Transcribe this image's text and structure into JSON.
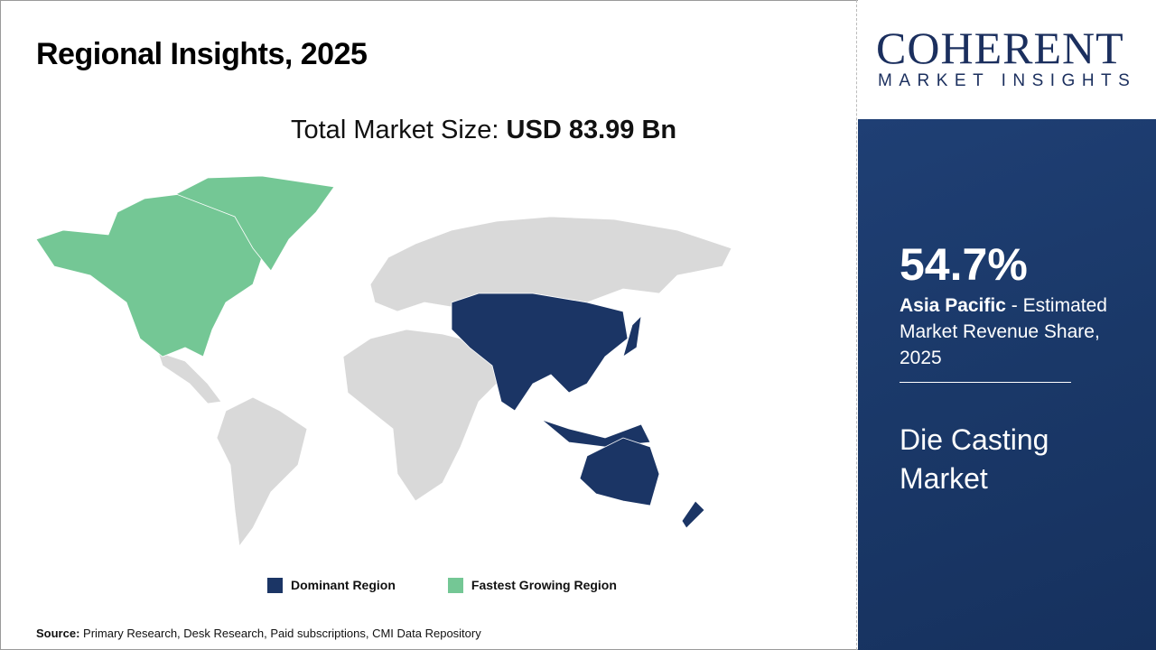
{
  "title": "Regional Insights, 2025",
  "total": {
    "label": "Total Market Size: ",
    "value": "USD 83.99 Bn"
  },
  "legend": [
    {
      "label": "Dominant Region",
      "color": "#1b3565"
    },
    {
      "label": "Fastest Growing Region",
      "color": "#74c795"
    }
  ],
  "map": {
    "dominant_region": "Asia Pacific",
    "fastest_growing_region": "North America",
    "other_color": "#d9d9d9"
  },
  "source": {
    "label": "Source:",
    "text": " Primary Research, Desk Research, Paid subscriptions, CMI Data Repository"
  },
  "logo": {
    "line1": "COHERENT",
    "line2": "MARKET INSIGHTS"
  },
  "panel": {
    "share": "54.7%",
    "region": "Asia Pacific",
    "desc": " - Estimated Market Revenue Share, 2025",
    "market": "Die Casting Market"
  }
}
